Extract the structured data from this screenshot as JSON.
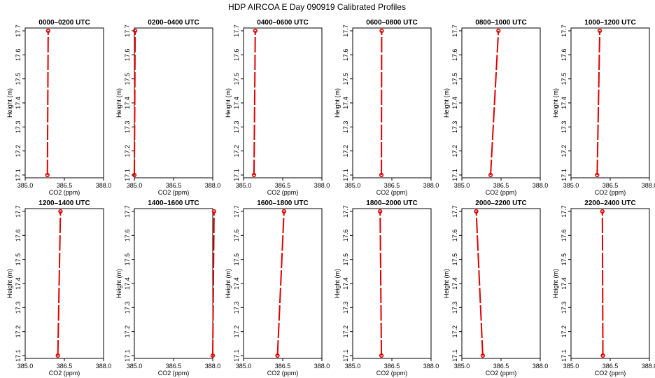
{
  "figure": {
    "title": "HDP AIRCOA E  Day 090919  Calibrated Profiles"
  },
  "style": {
    "line_color": "#e00000"
  },
  "chart_data": [
    {
      "type": "line",
      "title": "0000–0200 UTC",
      "xlabel": "CO2 (ppm)",
      "ylabel": "Height (m)",
      "xlim": [
        385.0,
        388.0
      ],
      "ylim": [
        17.1,
        17.7
      ],
      "xticks": [
        "385.0",
        "386.5",
        "388.0"
      ],
      "yticks": [
        "17.1",
        "17.2",
        "17.3",
        "17.4",
        "17.5",
        "17.6",
        "17.7"
      ],
      "x": [
        385.85,
        385.88
      ],
      "y": [
        17.1,
        17.7
      ],
      "grid": false
    },
    {
      "type": "line",
      "title": "0200–0400 UTC",
      "xlabel": "CO2 (ppm)",
      "ylabel": "Height (m)",
      "xlim": [
        385.0,
        388.0
      ],
      "ylim": [
        17.1,
        17.7
      ],
      "xticks": [
        "385.0",
        "386.5",
        "388.0"
      ],
      "yticks": [
        "17.1",
        "17.2",
        "17.3",
        "17.4",
        "17.5",
        "17.6",
        "17.7"
      ],
      "x": [
        385.0,
        385.03
      ],
      "y": [
        17.1,
        17.7
      ],
      "grid": false
    },
    {
      "type": "line",
      "title": "0400–0600 UTC",
      "xlabel": "CO2 (ppm)",
      "ylabel": "Height (m)",
      "xlim": [
        385.0,
        388.0
      ],
      "ylim": [
        17.1,
        17.7
      ],
      "xticks": [
        "385.0",
        "386.5",
        "388.0"
      ],
      "yticks": [
        "17.1",
        "17.2",
        "17.3",
        "17.4",
        "17.5",
        "17.6",
        "17.7"
      ],
      "x": [
        385.4,
        385.45
      ],
      "y": [
        17.1,
        17.7
      ],
      "grid": false
    },
    {
      "type": "line",
      "title": "0600–0800 UTC",
      "xlabel": "CO2 (ppm)",
      "ylabel": "Height (m)",
      "xlim": [
        385.0,
        388.0
      ],
      "ylim": [
        17.1,
        17.7
      ],
      "xticks": [
        "385.0",
        "386.5",
        "388.0"
      ],
      "yticks": [
        "17.1",
        "17.2",
        "17.3",
        "17.4",
        "17.5",
        "17.6",
        "17.7"
      ],
      "x": [
        386.1,
        386.11
      ],
      "y": [
        17.1,
        17.7
      ],
      "grid": false
    },
    {
      "type": "line",
      "title": "0800–1000 UTC",
      "xlabel": "CO2 (ppm)",
      "ylabel": "Height (m)",
      "xlim": [
        385.0,
        388.0
      ],
      "ylim": [
        17.1,
        17.7
      ],
      "xticks": [
        "385.0",
        "386.5",
        "388.0"
      ],
      "yticks": [
        "17.1",
        "17.2",
        "17.3",
        "17.4",
        "17.5",
        "17.6",
        "17.7"
      ],
      "x": [
        386.1,
        386.4
      ],
      "y": [
        17.1,
        17.7
      ],
      "grid": false
    },
    {
      "type": "line",
      "title": "1000–1200 UTC",
      "xlabel": "CO2 (ppm)",
      "ylabel": "Height (m)",
      "xlim": [
        385.0,
        388.0
      ],
      "ylim": [
        17.1,
        17.7
      ],
      "xticks": [
        "385.0",
        "386.5",
        "388.0"
      ],
      "yticks": [
        "17.1",
        "17.2",
        "17.3",
        "17.4",
        "17.5",
        "17.6",
        "17.7"
      ],
      "x": [
        386.0,
        386.1
      ],
      "y": [
        17.1,
        17.7
      ],
      "grid": false
    },
    {
      "type": "line",
      "title": "1200–1400 UTC",
      "xlabel": "CO2 (ppm)",
      "ylabel": "Height (m)",
      "xlim": [
        385.0,
        388.0
      ],
      "ylim": [
        17.1,
        17.7
      ],
      "xticks": [
        "385.0",
        "386.5",
        "388.0"
      ],
      "yticks": [
        "17.1",
        "17.2",
        "17.3",
        "17.4",
        "17.5",
        "17.6",
        "17.7"
      ],
      "x": [
        386.25,
        386.35
      ],
      "y": [
        17.1,
        17.7
      ],
      "grid": false
    },
    {
      "type": "line",
      "title": "1400–1600 UTC",
      "xlabel": "CO2 (ppm)",
      "ylabel": "Height (m)",
      "xlim": [
        385.0,
        388.0
      ],
      "ylim": [
        17.1,
        17.7
      ],
      "xticks": [
        "385.0",
        "386.5",
        "388.0"
      ],
      "yticks": [
        "17.1",
        "17.2",
        "17.3",
        "17.4",
        "17.5",
        "17.6",
        "17.7"
      ],
      "x": [
        388.0,
        388.05
      ],
      "y": [
        17.1,
        17.7
      ],
      "grid": false
    },
    {
      "type": "line",
      "title": "1600–1800 UTC",
      "xlabel": "CO2 (ppm)",
      "ylabel": "Height (m)",
      "xlim": [
        385.0,
        388.0
      ],
      "ylim": [
        17.1,
        17.7
      ],
      "xticks": [
        "385.0",
        "386.5",
        "388.0"
      ],
      "yticks": [
        "17.1",
        "17.2",
        "17.3",
        "17.4",
        "17.5",
        "17.6",
        "17.7"
      ],
      "x": [
        386.3,
        386.55
      ],
      "y": [
        17.1,
        17.7
      ],
      "grid": false
    },
    {
      "type": "line",
      "title": "1800–2000 UTC",
      "xlabel": "CO2 (ppm)",
      "ylabel": "Height (m)",
      "xlim": [
        385.0,
        388.0
      ],
      "ylim": [
        17.1,
        17.7
      ],
      "xticks": [
        "385.0",
        "386.5",
        "388.0"
      ],
      "yticks": [
        "17.1",
        "17.2",
        "17.3",
        "17.4",
        "17.5",
        "17.6",
        "17.7"
      ],
      "x": [
        386.1,
        386.05
      ],
      "y": [
        17.1,
        17.7
      ],
      "grid": false
    },
    {
      "type": "line",
      "title": "2000–2200 UTC",
      "xlabel": "CO2 (ppm)",
      "ylabel": "Height (m)",
      "xlim": [
        385.0,
        388.0
      ],
      "ylim": [
        17.1,
        17.7
      ],
      "xticks": [
        "385.0",
        "386.5",
        "388.0"
      ],
      "yticks": [
        "17.1",
        "17.2",
        "17.3",
        "17.4",
        "17.5",
        "17.6",
        "17.7"
      ],
      "x": [
        385.8,
        385.55
      ],
      "y": [
        17.1,
        17.7
      ],
      "grid": false
    },
    {
      "type": "line",
      "title": "2200–2400 UTC",
      "xlabel": "CO2 (ppm)",
      "ylabel": "Height (m)",
      "xlim": [
        385.0,
        388.0
      ],
      "ylim": [
        17.1,
        17.7
      ],
      "xticks": [
        "385.0",
        "386.5",
        "388.0"
      ],
      "yticks": [
        "17.1",
        "17.2",
        "17.3",
        "17.4",
        "17.5",
        "17.6",
        "17.7"
      ],
      "x": [
        386.22,
        386.2
      ],
      "y": [
        17.1,
        17.7
      ],
      "grid": false
    }
  ]
}
